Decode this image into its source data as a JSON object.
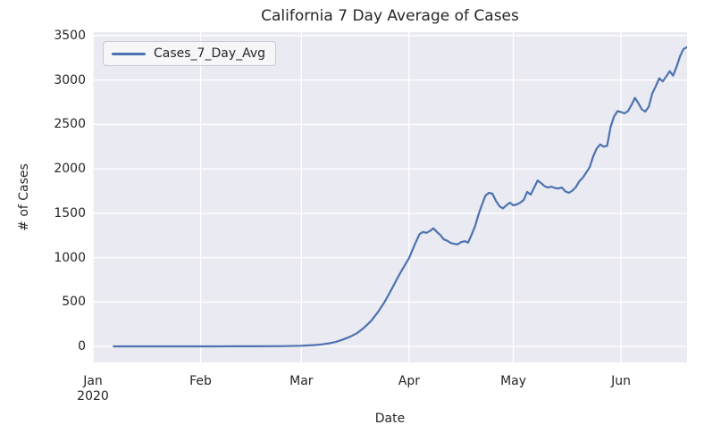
{
  "chart_data": {
    "type": "line",
    "title": "California 7 Day Average of Cases",
    "xlabel": "Date",
    "ylabel": "# of Cases",
    "grid": true,
    "legend_position": "upper left",
    "plot_bg": "#eaeaf2",
    "grid_color": "#ffffff",
    "line_color": "#4c72b0",
    "text_color": "#262626",
    "ylim": [
      -180,
      3540
    ],
    "yticks": [
      0,
      500,
      1000,
      1500,
      2000,
      2500,
      3000,
      3500
    ],
    "xlim": [
      "2020-01-01",
      "2020-06-20"
    ],
    "xticks": [
      {
        "label": "Jan",
        "sublabel": "2020",
        "date": "2020-01-01"
      },
      {
        "label": "Feb",
        "sublabel": "",
        "date": "2020-02-01"
      },
      {
        "label": "Mar",
        "sublabel": "",
        "date": "2020-03-01"
      },
      {
        "label": "Apr",
        "sublabel": "",
        "date": "2020-04-01"
      },
      {
        "label": "May",
        "sublabel": "",
        "date": "2020-05-01"
      },
      {
        "label": "Jun",
        "sublabel": "",
        "date": "2020-06-01"
      }
    ],
    "series": [
      {
        "name": "Cases_7_Day_Avg",
        "x": [
          "2020-01-07",
          "2020-01-14",
          "2020-01-21",
          "2020-01-28",
          "2020-02-04",
          "2020-02-11",
          "2020-02-18",
          "2020-02-25",
          "2020-03-01",
          "2020-03-03",
          "2020-03-05",
          "2020-03-07",
          "2020-03-09",
          "2020-03-11",
          "2020-03-13",
          "2020-03-15",
          "2020-03-17",
          "2020-03-19",
          "2020-03-21",
          "2020-03-23",
          "2020-03-25",
          "2020-03-27",
          "2020-03-29",
          "2020-03-31",
          "2020-04-01",
          "2020-04-02",
          "2020-04-03",
          "2020-04-04",
          "2020-04-05",
          "2020-04-06",
          "2020-04-07",
          "2020-04-08",
          "2020-04-09",
          "2020-04-10",
          "2020-04-11",
          "2020-04-12",
          "2020-04-13",
          "2020-04-14",
          "2020-04-15",
          "2020-04-16",
          "2020-04-17",
          "2020-04-18",
          "2020-04-19",
          "2020-04-20",
          "2020-04-21",
          "2020-04-22",
          "2020-04-23",
          "2020-04-24",
          "2020-04-25",
          "2020-04-26",
          "2020-04-27",
          "2020-04-28",
          "2020-04-29",
          "2020-04-30",
          "2020-05-01",
          "2020-05-02",
          "2020-05-03",
          "2020-05-04",
          "2020-05-05",
          "2020-05-06",
          "2020-05-07",
          "2020-05-08",
          "2020-05-09",
          "2020-05-10",
          "2020-05-11",
          "2020-05-12",
          "2020-05-13",
          "2020-05-14",
          "2020-05-15",
          "2020-05-16",
          "2020-05-17",
          "2020-05-18",
          "2020-05-19",
          "2020-05-20",
          "2020-05-21",
          "2020-05-22",
          "2020-05-23",
          "2020-05-24",
          "2020-05-25",
          "2020-05-26",
          "2020-05-27",
          "2020-05-28",
          "2020-05-29",
          "2020-05-30",
          "2020-05-31",
          "2020-06-01",
          "2020-06-02",
          "2020-06-03",
          "2020-06-04",
          "2020-06-05",
          "2020-06-06",
          "2020-06-07",
          "2020-06-08",
          "2020-06-09",
          "2020-06-10",
          "2020-06-11",
          "2020-06-12",
          "2020-06-13",
          "2020-06-14",
          "2020-06-15",
          "2020-06-16",
          "2020-06-17",
          "2020-06-18",
          "2020-06-19",
          "2020-06-20"
        ],
        "y": [
          1,
          1,
          1,
          1,
          1,
          2,
          2,
          4,
          8,
          12,
          16,
          24,
          35,
          52,
          78,
          110,
          150,
          210,
          285,
          385,
          505,
          645,
          795,
          930,
          995,
          1090,
          1180,
          1265,
          1290,
          1280,
          1300,
          1330,
          1290,
          1255,
          1205,
          1190,
          1165,
          1155,
          1150,
          1175,
          1185,
          1170,
          1260,
          1355,
          1490,
          1600,
          1700,
          1730,
          1720,
          1640,
          1580,
          1555,
          1590,
          1620,
          1590,
          1600,
          1620,
          1650,
          1740,
          1710,
          1790,
          1870,
          1840,
          1805,
          1790,
          1800,
          1785,
          1780,
          1790,
          1745,
          1730,
          1755,
          1795,
          1860,
          1900,
          1960,
          2020,
          2140,
          2230,
          2275,
          2250,
          2260,
          2470,
          2590,
          2650,
          2640,
          2625,
          2650,
          2720,
          2800,
          2740,
          2670,
          2645,
          2700,
          2850,
          2930,
          3020,
          2985,
          3040,
          3100,
          3050,
          3150,
          3270,
          3350,
          3370
        ]
      }
    ]
  }
}
